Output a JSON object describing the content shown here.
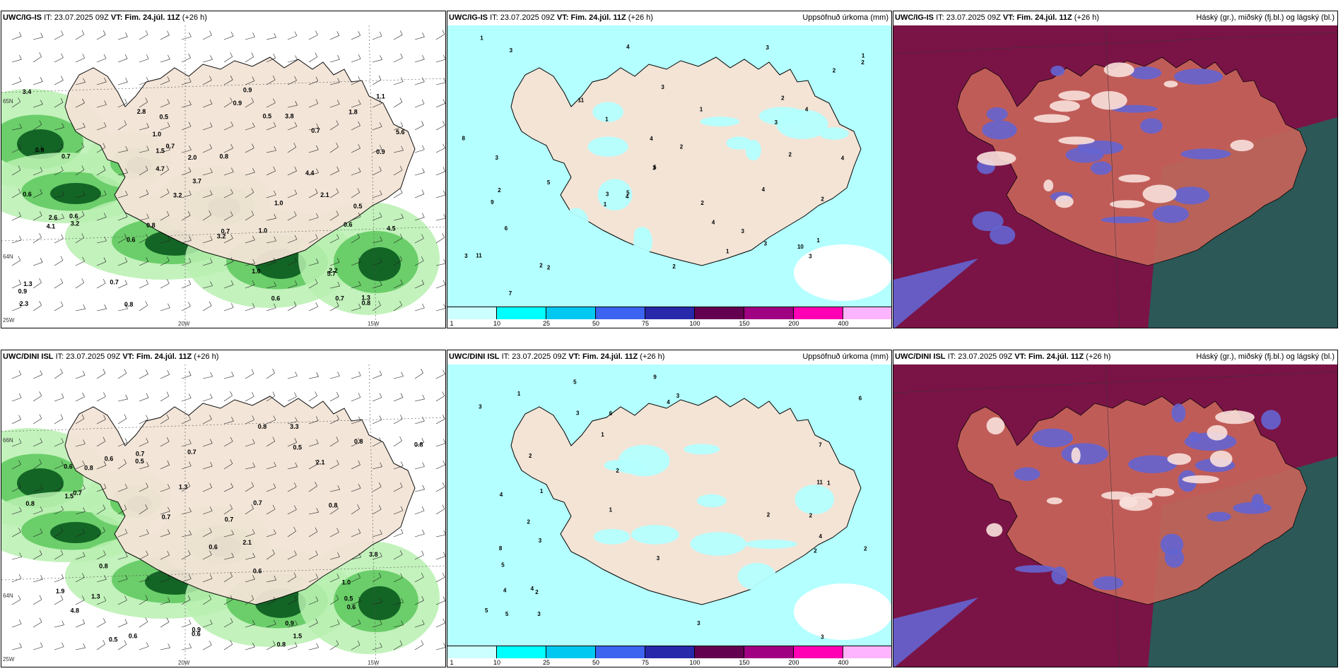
{
  "panels": [
    {
      "id": "top-left",
      "model": "UWC/IG-IS",
      "it_label": "IT:",
      "it_value": "23.07.2025 09Z",
      "vt_label": "VT:",
      "vt_value": "Fim. 24.júl. 11Z",
      "lead": "(+26 h)",
      "right_title": "",
      "lat_labels": [
        "65N",
        "64N",
        "25W"
      ],
      "lon_labels": [
        "20W",
        "15W"
      ],
      "values": [
        "0.7",
        "0.5",
        "0.7",
        "0.8",
        "0.6",
        "0.9",
        "3.4",
        "4.7",
        "3.7",
        "5.6",
        "3.8",
        "2.1",
        "3.2",
        "2.8",
        "0.5",
        "0.7",
        "1.0",
        "0.9",
        "0.6",
        "1.1",
        "0.6",
        "0.7",
        "3.2",
        "2.3",
        "1.5",
        "5.7",
        "0.8",
        "0.9",
        "1.3",
        "2.0",
        "0.8",
        "0.5",
        "0.7",
        "0.9",
        "1.3",
        "4.5",
        "4.4",
        "4.1",
        "3.2",
        "2.6",
        "1.0",
        "0.6",
        "1.0",
        "0.8",
        "0.7",
        "0.6",
        "0.9",
        "2.2",
        "1.8",
        "1.0"
      ]
    },
    {
      "id": "top-middle",
      "model": "UWC/IG-IS",
      "it_label": "IT:",
      "it_value": "23.07.2025 09Z",
      "vt_label": "VT:",
      "vt_value": "Fim. 24.júl. 11Z",
      "lead": "(+26 h)",
      "right_title": "Uppsöfnuð úrkoma (mm)",
      "colorbar": {
        "ticks": [
          "1",
          "10",
          "25",
          "50",
          "75",
          "100",
          "150",
          "200",
          "400"
        ],
        "colors": [
          "#ccffff",
          "#00ffff",
          "#00c8f0",
          "#3c64f0",
          "#2828aa",
          "#640050",
          "#a00082",
          "#ff00b4",
          "#ffb4ff"
        ]
      },
      "values": [
        "1",
        "2",
        "3",
        "4",
        "5",
        "6",
        "7",
        "8",
        "9",
        "10",
        "11",
        "2",
        "3",
        "4",
        "1",
        "2",
        "3",
        "1",
        "2",
        "3",
        "4",
        "5",
        "2",
        "3",
        "1",
        "4",
        "3",
        "2",
        "1",
        "2",
        "3",
        "4",
        "5",
        "3",
        "2",
        "1",
        "3",
        "4",
        "2",
        "3",
        "1",
        "2",
        "11",
        "3",
        "4",
        "2"
      ]
    },
    {
      "id": "top-right",
      "model": "UWC/IG-IS",
      "it_label": "IT:",
      "it_value": "23.07.2025 09Z",
      "vt_label": "VT:",
      "vt_value": "Fim. 24.júl. 11Z",
      "lead": "(+26 h)",
      "right_title": "Háský (gr.), miðský (fj.bl.) og lágský (bl.)"
    },
    {
      "id": "bottom-left",
      "model": "UWC/DINI ISL",
      "it_label": "IT:",
      "it_value": "23.07.2025 09Z",
      "vt_label": "VT:",
      "vt_value": "Fim. 24.júl. 11Z",
      "lead": "(+26 h)",
      "right_title": "",
      "lat_labels": [
        "66N",
        "64N",
        "25W"
      ],
      "lon_labels": [
        "20W",
        "15W"
      ],
      "values": [
        "0.6",
        "0.6",
        "0.5",
        "2.1",
        "4.8",
        "3.3",
        "0.8",
        "1.5",
        "0.9",
        "2.1",
        "0.8",
        "0.7",
        "0.6",
        "1.3",
        "0.8",
        "0.5",
        "0.7",
        "0.9",
        "0.6",
        "0.8",
        "0.8",
        "0.7",
        "0.6",
        "0.6",
        "0.8",
        "0.7",
        "0.5",
        "1.0",
        "1.9",
        "0.6",
        "0.8",
        "1.5",
        "1.3",
        "0.8",
        "0.7",
        "3.8",
        "0.5",
        "0.7"
      ]
    },
    {
      "id": "bottom-middle",
      "model": "UWC/DINI ISL",
      "it_label": "IT:",
      "it_value": "23.07.2025 09Z",
      "vt_label": "VT:",
      "vt_value": "Fim. 24.júl. 11Z",
      "lead": "(+26 h)",
      "right_title": "Uppsöfnuð úrkoma (mm)",
      "colorbar": {
        "ticks": [
          "1",
          "10",
          "25",
          "50",
          "75",
          "100",
          "150",
          "200",
          "400"
        ],
        "colors": [
          "#ccffff",
          "#00ffff",
          "#00c8f0",
          "#3c64f0",
          "#2828aa",
          "#640050",
          "#a00082",
          "#ff00b4",
          "#ffb4ff"
        ]
      },
      "values": [
        "2",
        "5",
        "6",
        "3",
        "2",
        "1",
        "4",
        "8",
        "11",
        "9",
        "3",
        "5",
        "4",
        "2",
        "1",
        "3",
        "2",
        "5",
        "7",
        "6",
        "4",
        "3",
        "2",
        "1",
        "4",
        "3",
        "2",
        "1",
        "3",
        "2",
        "4",
        "3",
        "2",
        "1",
        "5",
        "3"
      ]
    },
    {
      "id": "bottom-right",
      "model": "UWC/DINI ISL",
      "it_label": "IT:",
      "it_value": "23.07.2025 09Z",
      "vt_label": "VT:",
      "vt_value": "Fim. 24.júl. 11Z",
      "lead": "(+26 h)",
      "right_title": "Háský (gr.), miðský (fj.bl.) og lágský (bl.)"
    }
  ],
  "colors": {
    "land": "#f3e4d6",
    "green_light": "#b8f0b0",
    "green_mid": "#5cc85c",
    "green_dark": "#0a5a1e",
    "precip_light": "#b4ffff",
    "cloud_high": "#7a1446",
    "cloud_mid": "#c8645a",
    "cloud_low": "#6464d2",
    "cloud_green": "#1e645a"
  }
}
